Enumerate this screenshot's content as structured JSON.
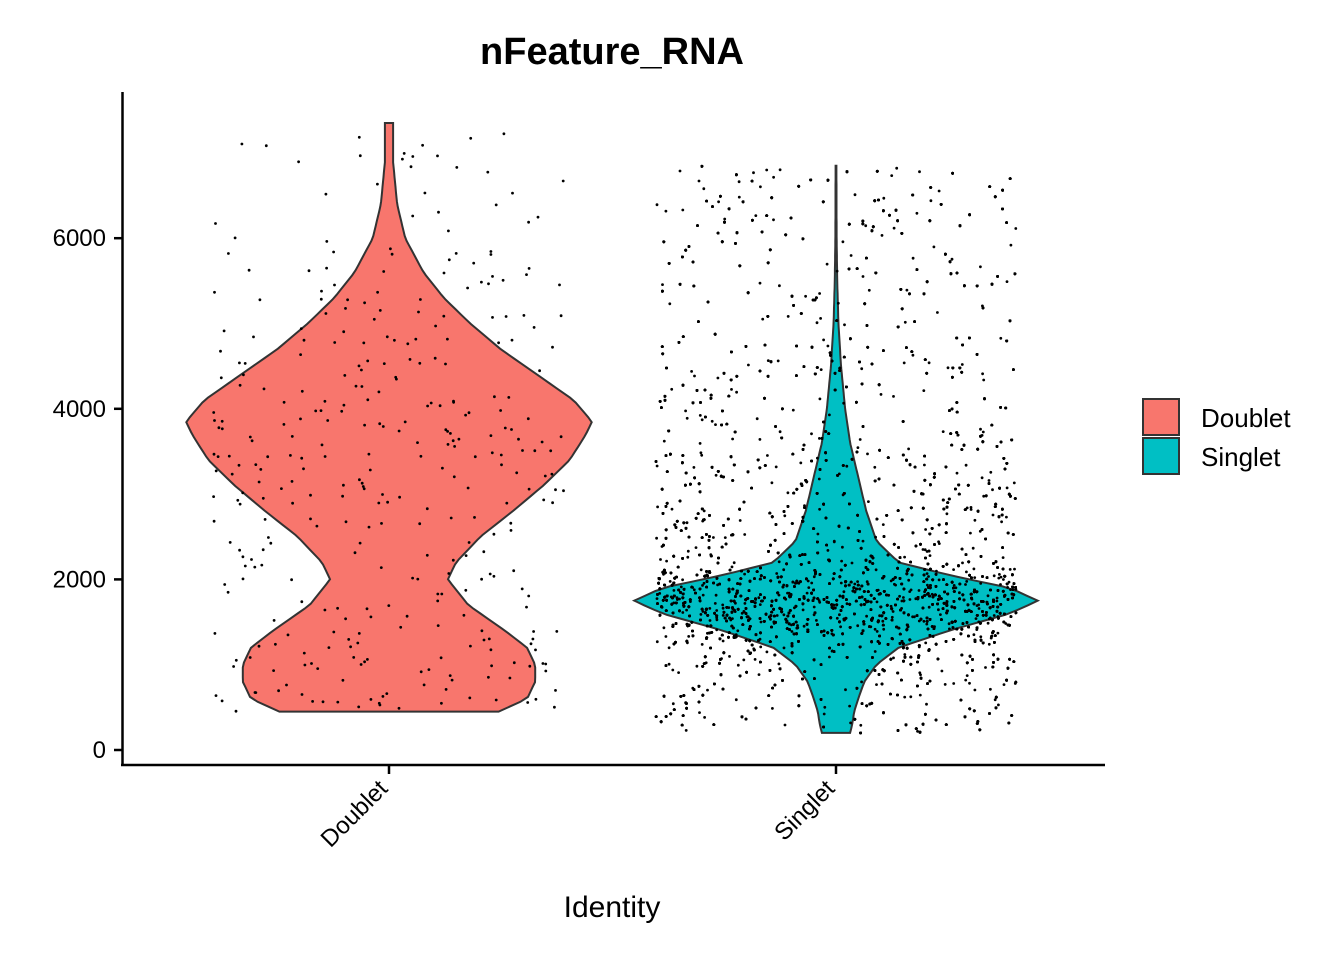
{
  "chart_data": {
    "type": "violin",
    "title": "nFeature_RNA",
    "xlabel": "Identity",
    "ylabel": "",
    "categories": [
      "Doublet",
      "Singlet"
    ],
    "ylim": [
      0,
      7600
    ],
    "yticks": [
      0,
      2000,
      4000,
      6000
    ],
    "grid": false,
    "legend": {
      "position": "right",
      "entries": [
        {
          "label": "Doublet",
          "color": "#F8766D"
        },
        {
          "label": "Singlet",
          "color": "#00BFC4"
        }
      ]
    },
    "series": [
      {
        "name": "Doublet",
        "color": "#F8766D",
        "min": 450,
        "max": 7350,
        "n_points_approx": 350,
        "density_profile": [
          [
            450,
            0.54
          ],
          [
            600,
            0.68
          ],
          [
            800,
            0.72
          ],
          [
            1000,
            0.72
          ],
          [
            1200,
            0.68
          ],
          [
            1400,
            0.57
          ],
          [
            1700,
            0.39
          ],
          [
            2000,
            0.29
          ],
          [
            2200,
            0.33
          ],
          [
            2500,
            0.45
          ],
          [
            2800,
            0.61
          ],
          [
            3100,
            0.76
          ],
          [
            3400,
            0.89
          ],
          [
            3700,
            0.97
          ],
          [
            3850,
            1.0
          ],
          [
            4100,
            0.91
          ],
          [
            4400,
            0.73
          ],
          [
            4700,
            0.55
          ],
          [
            5000,
            0.4
          ],
          [
            5300,
            0.27
          ],
          [
            5600,
            0.17
          ],
          [
            6000,
            0.08
          ],
          [
            6400,
            0.04
          ],
          [
            6900,
            0.02
          ],
          [
            7350,
            0.02
          ]
        ]
      },
      {
        "name": "Singlet",
        "color": "#00BFC4",
        "min": 200,
        "max": 6850,
        "n_points_approx": 7500,
        "density_profile": [
          [
            200,
            0.07
          ],
          [
            300,
            0.08
          ],
          [
            450,
            0.09
          ],
          [
            600,
            0.11
          ],
          [
            800,
            0.14
          ],
          [
            1000,
            0.2
          ],
          [
            1200,
            0.31
          ],
          [
            1400,
            0.56
          ],
          [
            1600,
            0.86
          ],
          [
            1750,
            1.0
          ],
          [
            1900,
            0.86
          ],
          [
            2050,
            0.56
          ],
          [
            2200,
            0.31
          ],
          [
            2450,
            0.2
          ],
          [
            2800,
            0.15
          ],
          [
            3200,
            0.11
          ],
          [
            3600,
            0.07
          ],
          [
            4000,
            0.045
          ],
          [
            4500,
            0.025
          ],
          [
            5000,
            0.012
          ],
          [
            5500,
            0.006
          ],
          [
            6000,
            0.003
          ],
          [
            6850,
            0.002
          ]
        ]
      }
    ]
  }
}
